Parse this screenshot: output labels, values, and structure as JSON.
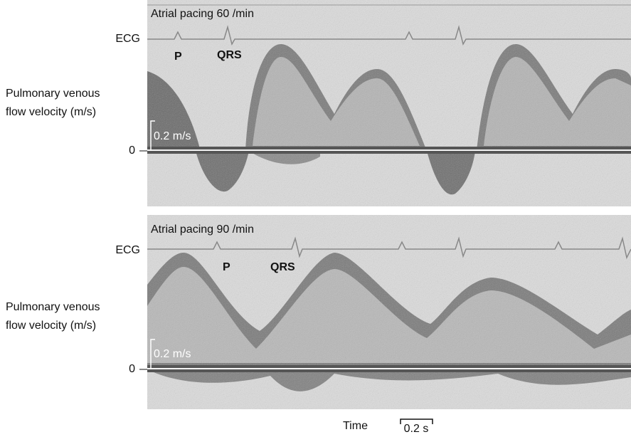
{
  "panels": [
    {
      "title": "Atrial pacing 60 /min",
      "ecg_label": "ECG",
      "p_label": "P",
      "qrs_label": "QRS",
      "y_label": [
        "Pulmonary venous",
        "flow velocity (m/s)"
      ],
      "scale_label": "0.2 m/s",
      "zero_label": "0"
    },
    {
      "title": "Atrial pacing 90 /min",
      "ecg_label": "ECG",
      "p_label": "P",
      "qrs_label": "QRS",
      "y_label": [
        "Pulmonary venous",
        "flow velocity (m/s)"
      ],
      "scale_label": "0.2 m/s",
      "zero_label": "0"
    }
  ],
  "x_label": "Time",
  "time_scale": "0.2 s"
}
